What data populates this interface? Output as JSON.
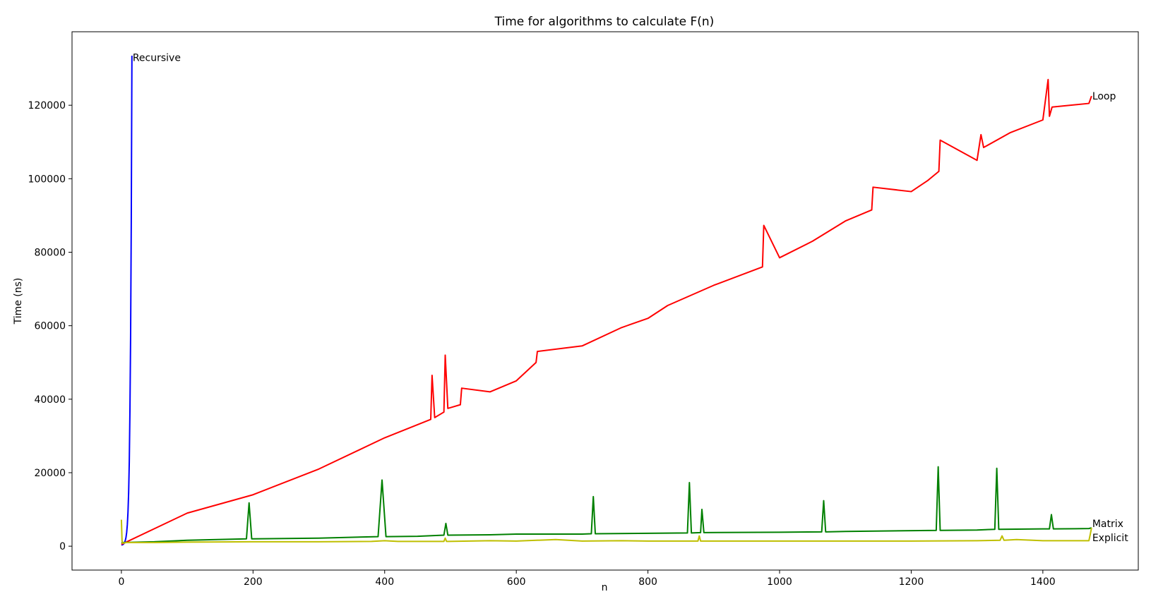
{
  "chart_data": {
    "type": "line",
    "title": "Time for algorithms to calculate F(n)",
    "xlabel": "n",
    "ylabel": "Time (ns)",
    "xlim": [
      -75,
      1545
    ],
    "ylim": [
      -6500,
      140000
    ],
    "xticks": [
      0,
      200,
      400,
      600,
      800,
      1000,
      1200,
      1400
    ],
    "yticks": [
      0,
      20000,
      40000,
      60000,
      80000,
      100000,
      120000
    ],
    "grid": false,
    "legend": "none",
    "series": [
      {
        "name": "Recursive",
        "color": "#0000ff",
        "x": [
          0,
          1,
          2,
          3,
          4,
          5,
          6,
          7,
          8,
          9,
          10,
          11,
          12,
          13,
          14,
          15,
          16
        ],
        "y": [
          300,
          350,
          420,
          550,
          750,
          1100,
          1600,
          2400,
          3700,
          5800,
          9200,
          14500,
          23000,
          37000,
          57000,
          88000,
          133500
        ]
      },
      {
        "name": "Loop",
        "color": "#ff0000",
        "x": [
          0,
          100,
          200,
          300,
          400,
          470,
          472,
          476,
          490,
          492,
          496,
          515,
          517,
          560,
          600,
          630,
          632,
          700,
          760,
          800,
          830,
          900,
          974,
          976,
          1000,
          1050,
          1100,
          1140,
          1142,
          1200,
          1225,
          1242,
          1244,
          1300,
          1306,
          1310,
          1350,
          1400,
          1408,
          1410,
          1414,
          1470,
          1474
        ],
        "y": [
          500,
          9000,
          14000,
          21000,
          29500,
          34500,
          46500,
          35000,
          36500,
          52000,
          37500,
          38500,
          43000,
          42000,
          45000,
          50000,
          53000,
          54500,
          59500,
          62000,
          65500,
          71000,
          76000,
          87300,
          78500,
          83000,
          88500,
          91500,
          97700,
          96500,
          99500,
          102000,
          110500,
          105000,
          112000,
          108500,
          112500,
          116000,
          127000,
          117000,
          119500,
          120500,
          122500
        ]
      },
      {
        "name": "Matrix",
        "color": "#008000",
        "x": [
          0,
          50,
          100,
          190,
          194,
          198,
          300,
          390,
          396,
          402,
          450,
          490,
          493,
          496,
          560,
          600,
          700,
          714,
          717,
          720,
          800,
          860,
          863,
          866,
          880,
          882,
          885,
          1000,
          1064,
          1067,
          1070,
          1100,
          1238,
          1241,
          1244,
          1300,
          1327,
          1330,
          1333,
          1400,
          1410,
          1413,
          1416,
          1470,
          1474
        ],
        "y": [
          1000,
          1200,
          1600,
          2000,
          11800,
          2000,
          2200,
          2600,
          18000,
          2600,
          2700,
          3000,
          6200,
          3000,
          3100,
          3300,
          3300,
          3400,
          13500,
          3400,
          3500,
          3600,
          17300,
          3600,
          3700,
          10000,
          3700,
          3800,
          3900,
          12400,
          3900,
          4000,
          4300,
          21600,
          4300,
          4400,
          4600,
          21200,
          4600,
          4700,
          4700,
          8600,
          4700,
          4800,
          5000
        ]
      },
      {
        "name": "Explicit",
        "color": "#bfbf00",
        "x": [
          0,
          1,
          2,
          4,
          8,
          50,
          100,
          200,
          300,
          380,
          400,
          420,
          490,
          492,
          494,
          560,
          600,
          660,
          700,
          760,
          800,
          876,
          878,
          880,
          1000,
          1100,
          1200,
          1300,
          1335,
          1338,
          1341,
          1360,
          1400,
          1470,
          1472,
          1474
        ],
        "y": [
          7200,
          1500,
          800,
          900,
          1000,
          1000,
          1100,
          1200,
          1200,
          1300,
          1500,
          1300,
          1300,
          2200,
          1300,
          1500,
          1400,
          1800,
          1400,
          1500,
          1400,
          1400,
          2800,
          1400,
          1400,
          1400,
          1400,
          1500,
          1600,
          2800,
          1600,
          1800,
          1500,
          1500,
          3200,
          5000
        ]
      }
    ],
    "annotations": [
      {
        "text": "Recursive",
        "x": 16,
        "y": 133000
      },
      {
        "text": "Loop",
        "x": 1474,
        "y": 122500
      },
      {
        "text": "Matrix",
        "x": 1474,
        "y": 6200
      },
      {
        "text": "Explicit",
        "x": 1474,
        "y": 2300
      }
    ]
  }
}
